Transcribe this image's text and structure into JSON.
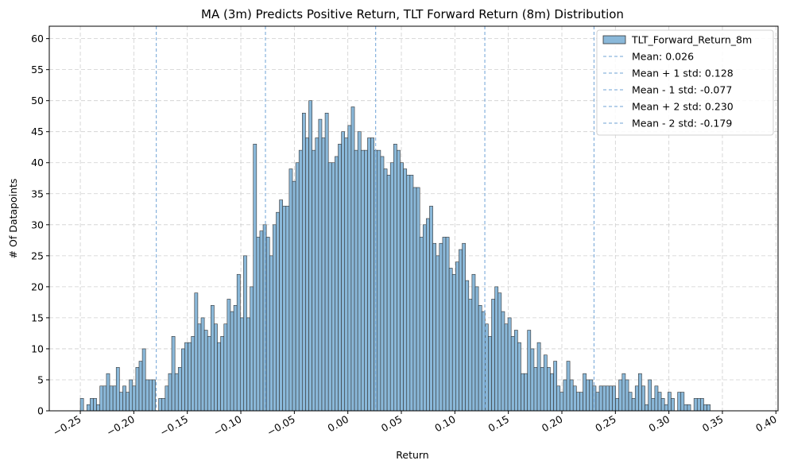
{
  "chart_data": {
    "type": "bar",
    "title": "MA (3m) Predicts Positive Return, TLT Forward Return (8m) Distribution",
    "xlabel": "Return",
    "ylabel": "# Of Datapoints",
    "xlim": [
      -0.279,
      0.402
    ],
    "ylim": [
      0,
      62
    ],
    "grid": true,
    "legend_position": "top-right",
    "bin_start": -0.25,
    "bin_width": 0.00305,
    "series": [
      {
        "name": "TLT_Forward_Return_8m",
        "color": "#8ab8d9",
        "edge_color": "#333333",
        "counts": [
          2,
          0,
          1,
          2,
          2,
          1,
          4,
          4,
          6,
          4,
          4,
          7,
          3,
          4,
          3,
          5,
          4,
          7,
          8,
          10,
          5,
          5,
          5,
          0,
          2,
          2,
          4,
          6,
          12,
          6,
          7,
          10,
          11,
          11,
          12,
          19,
          14,
          15,
          13,
          12,
          17,
          14,
          11,
          12,
          14,
          18,
          16,
          17,
          22,
          15,
          25,
          15,
          20,
          43,
          28,
          29,
          30,
          28,
          25,
          30,
          32,
          34,
          33,
          33,
          39,
          37,
          40,
          42,
          48,
          44,
          50,
          42,
          44,
          47,
          44,
          48,
          40,
          40,
          41,
          43,
          45,
          44,
          46,
          49,
          42,
          45,
          42,
          42,
          44,
          44,
          42,
          42,
          41,
          39,
          38,
          40,
          43,
          42,
          40,
          39,
          38,
          38,
          36,
          36,
          28,
          30,
          31,
          33,
          27,
          25,
          27,
          28,
          28,
          23,
          22,
          24,
          26,
          27,
          21,
          18,
          22,
          20,
          17,
          16,
          14,
          12,
          18,
          20,
          19,
          16,
          14,
          15,
          12,
          13,
          11,
          6,
          6,
          13,
          10,
          7,
          11,
          7,
          9,
          7,
          6,
          8,
          4,
          3,
          5,
          8,
          5,
          4,
          3,
          3,
          6,
          5,
          5,
          4,
          3,
          4,
          4,
          4,
          4,
          4,
          2,
          5,
          6,
          5,
          3,
          2,
          4,
          6,
          4,
          1,
          5,
          2,
          4,
          3,
          2,
          1,
          3,
          2,
          0,
          3,
          3,
          1,
          1,
          0,
          2,
          2,
          2,
          1,
          1
        ],
        "note": "counts per bin from left to right"
      }
    ],
    "reference_lines": [
      {
        "name": "Mean: 0.026",
        "x": 0.026,
        "color": "#6fa3d6",
        "style": "dashed"
      },
      {
        "name": "Mean + 1 std: 0.128",
        "x": 0.128,
        "color": "#6fa3d6",
        "style": "dashed"
      },
      {
        "name": "Mean - 1 std: -0.077",
        "x": -0.077,
        "color": "#6fa3d6",
        "style": "dashed"
      },
      {
        "name": "Mean + 2 std: 0.230",
        "x": 0.23,
        "color": "#6fa3d6",
        "style": "dashed"
      },
      {
        "name": "Mean - 2 std: -0.179",
        "x": -0.179,
        "color": "#6fa3d6",
        "style": "dashed"
      }
    ],
    "x_ticks": [
      -0.25,
      -0.2,
      -0.15,
      -0.1,
      -0.05,
      0.0,
      0.05,
      0.1,
      0.15,
      0.2,
      0.25,
      0.3,
      0.35,
      0.4
    ],
    "x_tick_labels": [
      "−0.25",
      "−0.20",
      "−0.15",
      "−0.10",
      "−0.05",
      "0.00",
      "0.05",
      "0.10",
      "0.15",
      "0.20",
      "0.25",
      "0.30",
      "0.35",
      "0.40"
    ],
    "y_ticks": [
      0,
      5,
      10,
      15,
      20,
      25,
      30,
      35,
      40,
      45,
      50,
      55,
      60
    ],
    "y_tick_labels": [
      "0",
      "5",
      "10",
      "15",
      "20",
      "25",
      "30",
      "35",
      "40",
      "45",
      "50",
      "55",
      "60"
    ]
  }
}
